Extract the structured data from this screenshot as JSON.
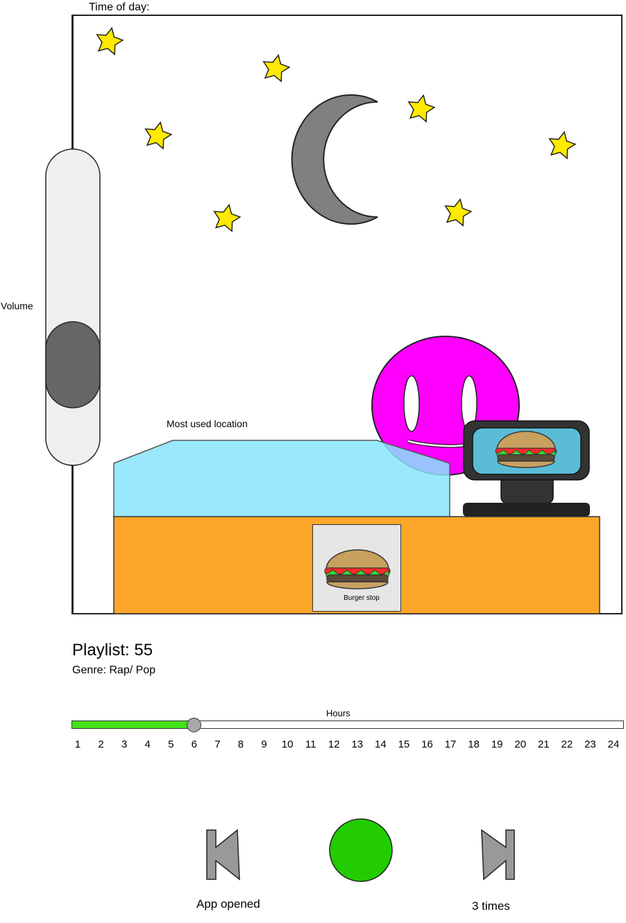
{
  "scene": {
    "time_label": "Time of day:",
    "volume_label": "Volume",
    "volume_level": 0.25,
    "location_label": "Most used location",
    "sign_label": "Burger stop"
  },
  "playlist": {
    "title": "Playlist: 55",
    "genre": "Genre: Rap/ Pop"
  },
  "timeline": {
    "label": "Hours",
    "ticks": [
      "1",
      "2",
      "3",
      "4",
      "5",
      "6",
      "7",
      "8",
      "9",
      "10",
      "11",
      "12",
      "13",
      "14",
      "15",
      "16",
      "17",
      "18",
      "19",
      "20",
      "21",
      "22",
      "23",
      "24"
    ],
    "selected_hour": 6
  },
  "controls": {
    "caption_left": "App opened",
    "caption_right": "3 times"
  },
  "icons": {
    "star": "star-icon",
    "moon": "moon-icon",
    "face": "smiley-face",
    "burger": "burger-icon",
    "previous": "skip-previous-icon",
    "play": "play-button",
    "next": "skip-next-icon"
  },
  "colors": {
    "star": "#ffea00",
    "moon": "#808080",
    "face": "#ff00ff",
    "counter_glass": "#88e4fb",
    "counter": "#fca62a",
    "progress_fill": "#44e21a",
    "play": "#22cc00",
    "monitor_screen": "#5bbcd6"
  }
}
